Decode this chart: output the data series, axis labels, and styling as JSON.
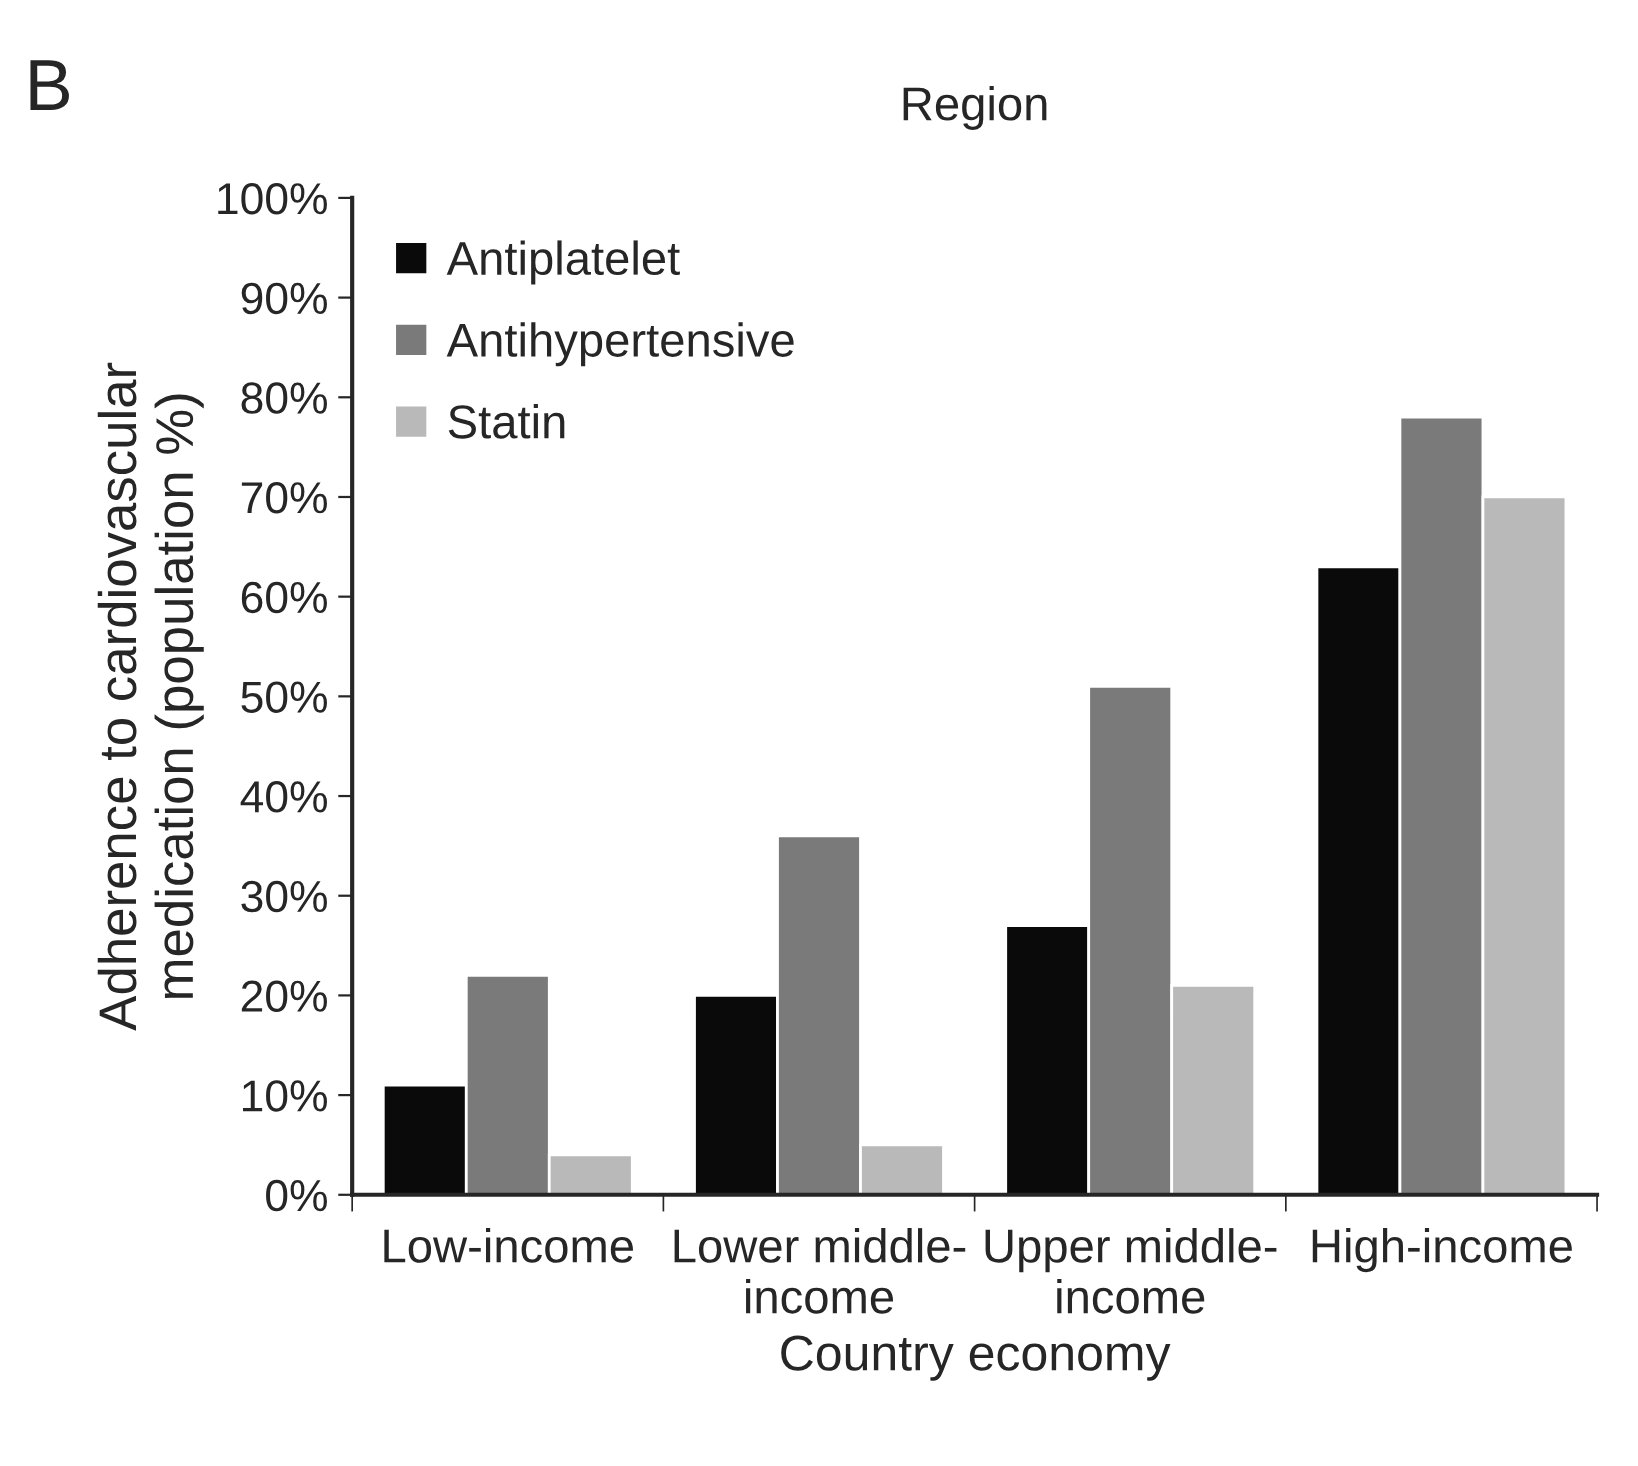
{
  "chart_data": {
    "type": "bar",
    "title": "Region",
    "xlabel": "Country economy",
    "ylabel": "Adherence to cardiovascular\nmedication (population %)",
    "annotations": [
      "B"
    ],
    "categories": [
      "Low-income",
      "Lower middle-\nincome",
      "Upper middle-\nincome",
      "High-income"
    ],
    "series": [
      {
        "name": "Antiplatelet",
        "color": "#0a0a0a",
        "values": [
          11,
          20,
          27,
          63
        ]
      },
      {
        "name": "Antihypertensive",
        "color": "#7a7a7a",
        "values": [
          22,
          36,
          51,
          78
        ]
      },
      {
        "name": "Statin",
        "color": "#b9b9b9",
        "values": [
          4,
          5,
          21,
          70
        ]
      }
    ],
    "ylim": [
      0,
      100
    ],
    "yticks": [
      {
        "value": 0,
        "label": "0%"
      },
      {
        "value": 10,
        "label": "10%"
      },
      {
        "value": 20,
        "label": "20%"
      },
      {
        "value": 30,
        "label": "30%"
      },
      {
        "value": 40,
        "label": "40%"
      },
      {
        "value": 50,
        "label": "50%"
      },
      {
        "value": 60,
        "label": "60%"
      },
      {
        "value": 70,
        "label": "70%"
      },
      {
        "value": 80,
        "label": "80%"
      },
      {
        "value": 90,
        "label": "90%"
      },
      {
        "value": 100,
        "label": "100%"
      }
    ],
    "grid": false,
    "legend": "top left"
  }
}
